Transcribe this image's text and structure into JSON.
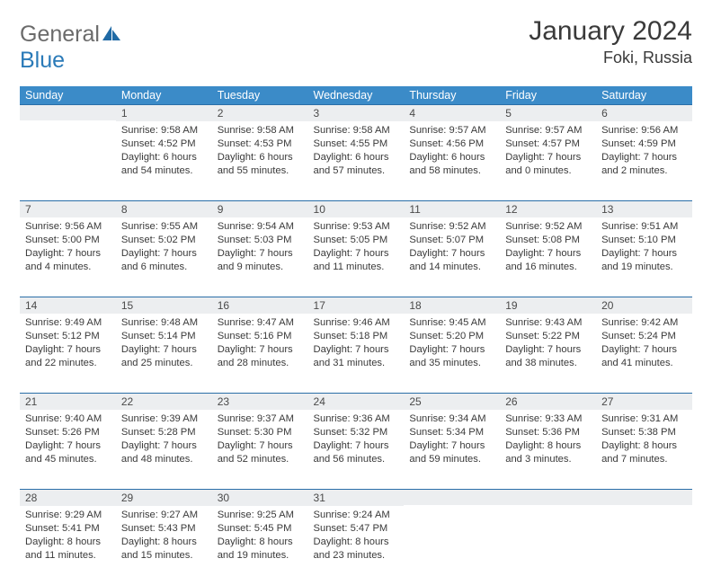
{
  "brand": {
    "part1": "General",
    "part2": "Blue"
  },
  "title": "January 2024",
  "location": "Foki, Russia",
  "day_headers": [
    "Sunday",
    "Monday",
    "Tuesday",
    "Wednesday",
    "Thursday",
    "Friday",
    "Saturday"
  ],
  "colors": {
    "header_bg": "#3b8bc8",
    "header_text": "#ffffff",
    "daynum_bg": "#eceef0",
    "daynum_border": "#2a6ea8",
    "body_text": "#3a3a3a",
    "logo_gray": "#6b6b6b",
    "logo_blue": "#2a7ab8"
  },
  "weeks": [
    [
      null,
      {
        "n": "1",
        "sr": "9:58 AM",
        "ss": "4:52 PM",
        "dl": "6 hours and 54 minutes."
      },
      {
        "n": "2",
        "sr": "9:58 AM",
        "ss": "4:53 PM",
        "dl": "6 hours and 55 minutes."
      },
      {
        "n": "3",
        "sr": "9:58 AM",
        "ss": "4:55 PM",
        "dl": "6 hours and 57 minutes."
      },
      {
        "n": "4",
        "sr": "9:57 AM",
        "ss": "4:56 PM",
        "dl": "6 hours and 58 minutes."
      },
      {
        "n": "5",
        "sr": "9:57 AM",
        "ss": "4:57 PM",
        "dl": "7 hours and 0 minutes."
      },
      {
        "n": "6",
        "sr": "9:56 AM",
        "ss": "4:59 PM",
        "dl": "7 hours and 2 minutes."
      }
    ],
    [
      {
        "n": "7",
        "sr": "9:56 AM",
        "ss": "5:00 PM",
        "dl": "7 hours and 4 minutes."
      },
      {
        "n": "8",
        "sr": "9:55 AM",
        "ss": "5:02 PM",
        "dl": "7 hours and 6 minutes."
      },
      {
        "n": "9",
        "sr": "9:54 AM",
        "ss": "5:03 PM",
        "dl": "7 hours and 9 minutes."
      },
      {
        "n": "10",
        "sr": "9:53 AM",
        "ss": "5:05 PM",
        "dl": "7 hours and 11 minutes."
      },
      {
        "n": "11",
        "sr": "9:52 AM",
        "ss": "5:07 PM",
        "dl": "7 hours and 14 minutes."
      },
      {
        "n": "12",
        "sr": "9:52 AM",
        "ss": "5:08 PM",
        "dl": "7 hours and 16 minutes."
      },
      {
        "n": "13",
        "sr": "9:51 AM",
        "ss": "5:10 PM",
        "dl": "7 hours and 19 minutes."
      }
    ],
    [
      {
        "n": "14",
        "sr": "9:49 AM",
        "ss": "5:12 PM",
        "dl": "7 hours and 22 minutes."
      },
      {
        "n": "15",
        "sr": "9:48 AM",
        "ss": "5:14 PM",
        "dl": "7 hours and 25 minutes."
      },
      {
        "n": "16",
        "sr": "9:47 AM",
        "ss": "5:16 PM",
        "dl": "7 hours and 28 minutes."
      },
      {
        "n": "17",
        "sr": "9:46 AM",
        "ss": "5:18 PM",
        "dl": "7 hours and 31 minutes."
      },
      {
        "n": "18",
        "sr": "9:45 AM",
        "ss": "5:20 PM",
        "dl": "7 hours and 35 minutes."
      },
      {
        "n": "19",
        "sr": "9:43 AM",
        "ss": "5:22 PM",
        "dl": "7 hours and 38 minutes."
      },
      {
        "n": "20",
        "sr": "9:42 AM",
        "ss": "5:24 PM",
        "dl": "7 hours and 41 minutes."
      }
    ],
    [
      {
        "n": "21",
        "sr": "9:40 AM",
        "ss": "5:26 PM",
        "dl": "7 hours and 45 minutes."
      },
      {
        "n": "22",
        "sr": "9:39 AM",
        "ss": "5:28 PM",
        "dl": "7 hours and 48 minutes."
      },
      {
        "n": "23",
        "sr": "9:37 AM",
        "ss": "5:30 PM",
        "dl": "7 hours and 52 minutes."
      },
      {
        "n": "24",
        "sr": "9:36 AM",
        "ss": "5:32 PM",
        "dl": "7 hours and 56 minutes."
      },
      {
        "n": "25",
        "sr": "9:34 AM",
        "ss": "5:34 PM",
        "dl": "7 hours and 59 minutes."
      },
      {
        "n": "26",
        "sr": "9:33 AM",
        "ss": "5:36 PM",
        "dl": "8 hours and 3 minutes."
      },
      {
        "n": "27",
        "sr": "9:31 AM",
        "ss": "5:38 PM",
        "dl": "8 hours and 7 minutes."
      }
    ],
    [
      {
        "n": "28",
        "sr": "9:29 AM",
        "ss": "5:41 PM",
        "dl": "8 hours and 11 minutes."
      },
      {
        "n": "29",
        "sr": "9:27 AM",
        "ss": "5:43 PM",
        "dl": "8 hours and 15 minutes."
      },
      {
        "n": "30",
        "sr": "9:25 AM",
        "ss": "5:45 PM",
        "dl": "8 hours and 19 minutes."
      },
      {
        "n": "31",
        "sr": "9:24 AM",
        "ss": "5:47 PM",
        "dl": "8 hours and 23 minutes."
      },
      null,
      null,
      null
    ]
  ],
  "labels": {
    "sunrise": "Sunrise: ",
    "sunset": "Sunset: ",
    "daylight": "Daylight: "
  }
}
